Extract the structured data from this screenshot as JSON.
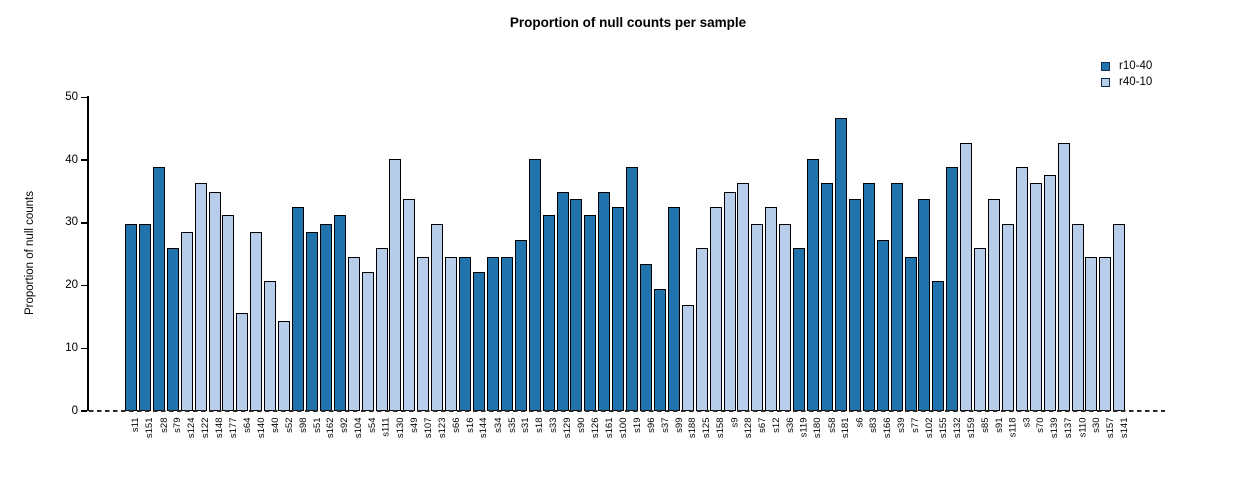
{
  "title": "Proportion of null counts per sample",
  "chart_data": {
    "type": "bar",
    "title": "Proportion of null counts per sample",
    "xlabel": "",
    "ylabel": "Proportion of null counts",
    "ylim": [
      0,
      50
    ],
    "yticks": [
      0,
      10,
      20,
      30,
      40,
      50
    ],
    "grid": false,
    "legend_position": "top-right",
    "zero_line_style": "dashed",
    "series": [
      {
        "name": "r10-40",
        "color": "#2173ae"
      },
      {
        "name": "r40-10",
        "color": "#b7cde9"
      }
    ],
    "bars": [
      {
        "label": "s11",
        "value": 29.9,
        "series": "r10-40"
      },
      {
        "label": "s151",
        "value": 29.9,
        "series": "r10-40"
      },
      {
        "label": "s28",
        "value": 38.9,
        "series": "r10-40"
      },
      {
        "label": "s79",
        "value": 26.0,
        "series": "r10-40"
      },
      {
        "label": "s124",
        "value": 28.5,
        "series": "r40-10"
      },
      {
        "label": "s122",
        "value": 36.3,
        "series": "r40-10"
      },
      {
        "label": "s148",
        "value": 35.0,
        "series": "r40-10"
      },
      {
        "label": "s177",
        "value": 31.2,
        "series": "r40-10"
      },
      {
        "label": "s64",
        "value": 15.6,
        "series": "r40-10"
      },
      {
        "label": "s140",
        "value": 28.5,
        "series": "r40-10"
      },
      {
        "label": "s40",
        "value": 20.8,
        "series": "r40-10"
      },
      {
        "label": "s52",
        "value": 14.3,
        "series": "r40-10"
      },
      {
        "label": "s98",
        "value": 32.5,
        "series": "r10-40"
      },
      {
        "label": "s51",
        "value": 28.5,
        "series": "r10-40"
      },
      {
        "label": "s162",
        "value": 29.9,
        "series": "r10-40"
      },
      {
        "label": "s92",
        "value": 31.2,
        "series": "r10-40"
      },
      {
        "label": "s104",
        "value": 24.6,
        "series": "r40-10"
      },
      {
        "label": "s54",
        "value": 22.1,
        "series": "r40-10"
      },
      {
        "label": "s111",
        "value": 26.0,
        "series": "r40-10"
      },
      {
        "label": "s130",
        "value": 40.2,
        "series": "r40-10"
      },
      {
        "label": "s49",
        "value": 33.8,
        "series": "r40-10"
      },
      {
        "label": "s107",
        "value": 24.6,
        "series": "r40-10"
      },
      {
        "label": "s123",
        "value": 29.8,
        "series": "r40-10"
      },
      {
        "label": "s66",
        "value": 24.6,
        "series": "r40-10"
      },
      {
        "label": "s16",
        "value": 24.6,
        "series": "r10-40"
      },
      {
        "label": "s144",
        "value": 22.1,
        "series": "r10-40"
      },
      {
        "label": "s34",
        "value": 24.6,
        "series": "r10-40"
      },
      {
        "label": "s35",
        "value": 24.6,
        "series": "r10-40"
      },
      {
        "label": "s31",
        "value": 27.3,
        "series": "r10-40"
      },
      {
        "label": "s18",
        "value": 40.2,
        "series": "r10-40"
      },
      {
        "label": "s33",
        "value": 31.2,
        "series": "r10-40"
      },
      {
        "label": "s129",
        "value": 35.0,
        "series": "r10-40"
      },
      {
        "label": "s90",
        "value": 33.8,
        "series": "r10-40"
      },
      {
        "label": "s126",
        "value": 31.2,
        "series": "r10-40"
      },
      {
        "label": "s161",
        "value": 35.0,
        "series": "r10-40"
      },
      {
        "label": "s100",
        "value": 32.5,
        "series": "r10-40"
      },
      {
        "label": "s19",
        "value": 38.9,
        "series": "r10-40"
      },
      {
        "label": "s96",
        "value": 23.4,
        "series": "r10-40"
      },
      {
        "label": "s37",
        "value": 19.5,
        "series": "r10-40"
      },
      {
        "label": "s99",
        "value": 32.5,
        "series": "r10-40"
      },
      {
        "label": "s188",
        "value": 16.9,
        "series": "r40-10"
      },
      {
        "label": "s125",
        "value": 26.0,
        "series": "r40-10"
      },
      {
        "label": "s158",
        "value": 32.5,
        "series": "r40-10"
      },
      {
        "label": "s9",
        "value": 35.0,
        "series": "r40-10"
      },
      {
        "label": "s128",
        "value": 36.3,
        "series": "r40-10"
      },
      {
        "label": "s67",
        "value": 29.8,
        "series": "r40-10"
      },
      {
        "label": "s12",
        "value": 32.5,
        "series": "r40-10"
      },
      {
        "label": "s36",
        "value": 29.8,
        "series": "r40-10"
      },
      {
        "label": "s119",
        "value": 26.0,
        "series": "r10-40"
      },
      {
        "label": "s180",
        "value": 40.2,
        "series": "r10-40"
      },
      {
        "label": "s58",
        "value": 36.3,
        "series": "r10-40"
      },
      {
        "label": "s181",
        "value": 46.8,
        "series": "r10-40"
      },
      {
        "label": "s6",
        "value": 33.8,
        "series": "r10-40"
      },
      {
        "label": "s83",
        "value": 36.3,
        "series": "r10-40"
      },
      {
        "label": "s166",
        "value": 27.3,
        "series": "r10-40"
      },
      {
        "label": "s39",
        "value": 36.3,
        "series": "r10-40"
      },
      {
        "label": "s77",
        "value": 24.6,
        "series": "r10-40"
      },
      {
        "label": "s102",
        "value": 33.8,
        "series": "r10-40"
      },
      {
        "label": "s155",
        "value": 20.8,
        "series": "r10-40"
      },
      {
        "label": "s132",
        "value": 38.9,
        "series": "r10-40"
      },
      {
        "label": "s159",
        "value": 42.8,
        "series": "r40-10"
      },
      {
        "label": "s85",
        "value": 26.0,
        "series": "r40-10"
      },
      {
        "label": "s91",
        "value": 33.8,
        "series": "r40-10"
      },
      {
        "label": "s118",
        "value": 29.8,
        "series": "r40-10"
      },
      {
        "label": "s3",
        "value": 38.9,
        "series": "r40-10"
      },
      {
        "label": "s70",
        "value": 36.3,
        "series": "r40-10"
      },
      {
        "label": "s139",
        "value": 37.6,
        "series": "r40-10"
      },
      {
        "label": "s137",
        "value": 42.8,
        "series": "r40-10"
      },
      {
        "label": "s110",
        "value": 29.8,
        "series": "r40-10"
      },
      {
        "label": "s30",
        "value": 24.6,
        "series": "r40-10"
      },
      {
        "label": "s157",
        "value": 24.6,
        "series": "r40-10"
      },
      {
        "label": "s141",
        "value": 29.8,
        "series": "r40-10"
      }
    ]
  }
}
